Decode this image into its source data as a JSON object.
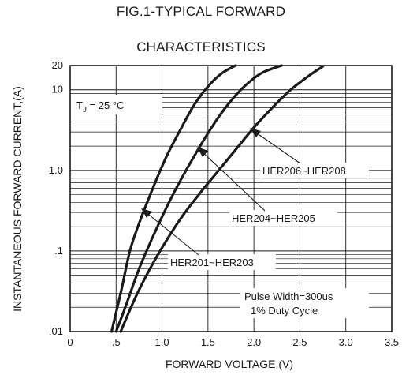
{
  "chart_data": {
    "type": "line",
    "title_line1": "FIG.1-TYPICAL FORWARD",
    "title_line2": "CHARACTERISTICS",
    "xlabel": "FORWARD VOLTAGE,(V)",
    "ylabel": "INSTANTANEOUS FORWARD CURRENT,(A)",
    "xlim": [
      0,
      3.5
    ],
    "ylim": [
      0.01,
      20
    ],
    "y_scale": "log",
    "grid": true,
    "x_ticks": [
      {
        "value": 0,
        "label": "0"
      },
      {
        "value": 0.5,
        "label": ".5"
      },
      {
        "value": 1.0,
        "label": "1.0"
      },
      {
        "value": 1.5,
        "label": "1.5"
      },
      {
        "value": 2.0,
        "label": "2.0"
      },
      {
        "value": 2.5,
        "label": "2.5"
      },
      {
        "value": 3.0,
        "label": "3.0"
      },
      {
        "value": 3.5,
        "label": "3.5"
      }
    ],
    "y_ticks": [
      {
        "value": 0.01,
        "label": ".01"
      },
      {
        "value": 0.1,
        "label": ".1"
      },
      {
        "value": 1.0,
        "label": "1.0"
      },
      {
        "value": 10,
        "label": "10"
      },
      {
        "value": 20,
        "label": "20"
      }
    ],
    "series": [
      {
        "name": "HER201~HER203",
        "x": [
          0.45,
          0.55,
          0.65,
          0.75,
          0.9,
          1.05,
          1.2,
          1.35,
          1.5,
          1.65,
          1.8
        ],
        "y": [
          0.01,
          0.03,
          0.1,
          0.22,
          0.6,
          1.5,
          3.2,
          6.5,
          11,
          16,
          20
        ]
      },
      {
        "name": "HER204~HER205",
        "x": [
          0.5,
          0.6,
          0.75,
          0.9,
          1.05,
          1.2,
          1.35,
          1.5,
          1.65,
          1.8,
          1.95,
          2.1,
          2.3
        ],
        "y": [
          0.01,
          0.02,
          0.06,
          0.15,
          0.35,
          0.75,
          1.5,
          2.9,
          5.2,
          8.5,
          12.5,
          16.5,
          20
        ]
      },
      {
        "name": "HER206~HER208",
        "x": [
          0.55,
          0.7,
          0.85,
          1.0,
          1.2,
          1.4,
          1.6,
          1.8,
          2.0,
          2.2,
          2.4,
          2.6,
          2.75
        ],
        "y": [
          0.01,
          0.025,
          0.055,
          0.11,
          0.25,
          0.5,
          0.95,
          1.8,
          3.4,
          6.0,
          10,
          15,
          19.5
        ]
      }
    ],
    "annotations": {
      "tj": {
        "prefix": "T",
        "subscript": "J",
        "suffix": " = 25 °C"
      },
      "pulse_line1": "Pulse Width=300us",
      "pulse_line2": "1% Duty Cycle"
    }
  }
}
